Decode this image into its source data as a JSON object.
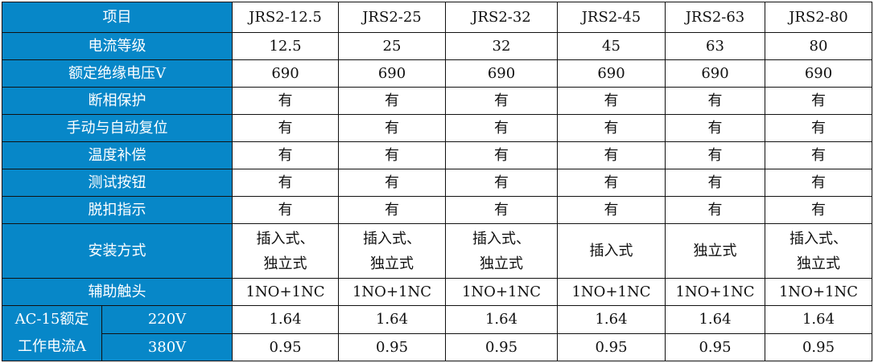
{
  "header": {
    "label": "项目",
    "models": [
      "JRS2-12.5",
      "JRS2-25",
      "JRS2-32",
      "JRS2-45",
      "JRS2-63",
      "JRS2-80"
    ]
  },
  "rows": [
    {
      "label": "电流等级",
      "values": [
        "12.5",
        "25",
        "32",
        "45",
        "63",
        "80"
      ]
    },
    {
      "label": "额定绝缘电压V",
      "values": [
        "690",
        "690",
        "690",
        "690",
        "690",
        "690"
      ]
    },
    {
      "label": "断相保护",
      "values": [
        "有",
        "有",
        "有",
        "有",
        "有",
        "有"
      ]
    },
    {
      "label": "手动与自动复位",
      "values": [
        "有",
        "有",
        "有",
        "有",
        "有",
        "有"
      ]
    },
    {
      "label": "温度补偿",
      "values": [
        "有",
        "有",
        "有",
        "有",
        "有",
        "有"
      ]
    },
    {
      "label": "测试按钮",
      "values": [
        "有",
        "有",
        "有",
        "有",
        "有",
        "有"
      ]
    },
    {
      "label": "脱扣指示",
      "values": [
        "有",
        "有",
        "有",
        "有",
        "有",
        "有"
      ]
    }
  ],
  "install": {
    "label": "安装方式",
    "values": [
      [
        "插入式、",
        "独立式"
      ],
      [
        "插入式、",
        "独立式"
      ],
      [
        "插入式、",
        "独立式"
      ],
      [
        "插入式"
      ],
      [
        "独立式"
      ],
      [
        "插入式、",
        "独立式"
      ]
    ]
  },
  "aux": {
    "label": "辅助触头",
    "values": [
      "1NO+1NC",
      "1NO+1NC",
      "1NO+1NC",
      "1NO+1NC",
      "1NO+1NC",
      "1NO+1NC"
    ]
  },
  "ac15": {
    "label_line1": "AC-15额定",
    "label_line2": "工作电流A",
    "rows": [
      {
        "voltage": "220V",
        "values": [
          "1.64",
          "1.64",
          "1.64",
          "1.64",
          "1.64",
          "1.64"
        ]
      },
      {
        "voltage": "380V",
        "values": [
          "0.95",
          "0.95",
          "0.95",
          "0.95",
          "0.95",
          "0.95"
        ]
      }
    ]
  },
  "colors": {
    "header_bg": "#0787c8",
    "header_text": "#ffffff"
  }
}
